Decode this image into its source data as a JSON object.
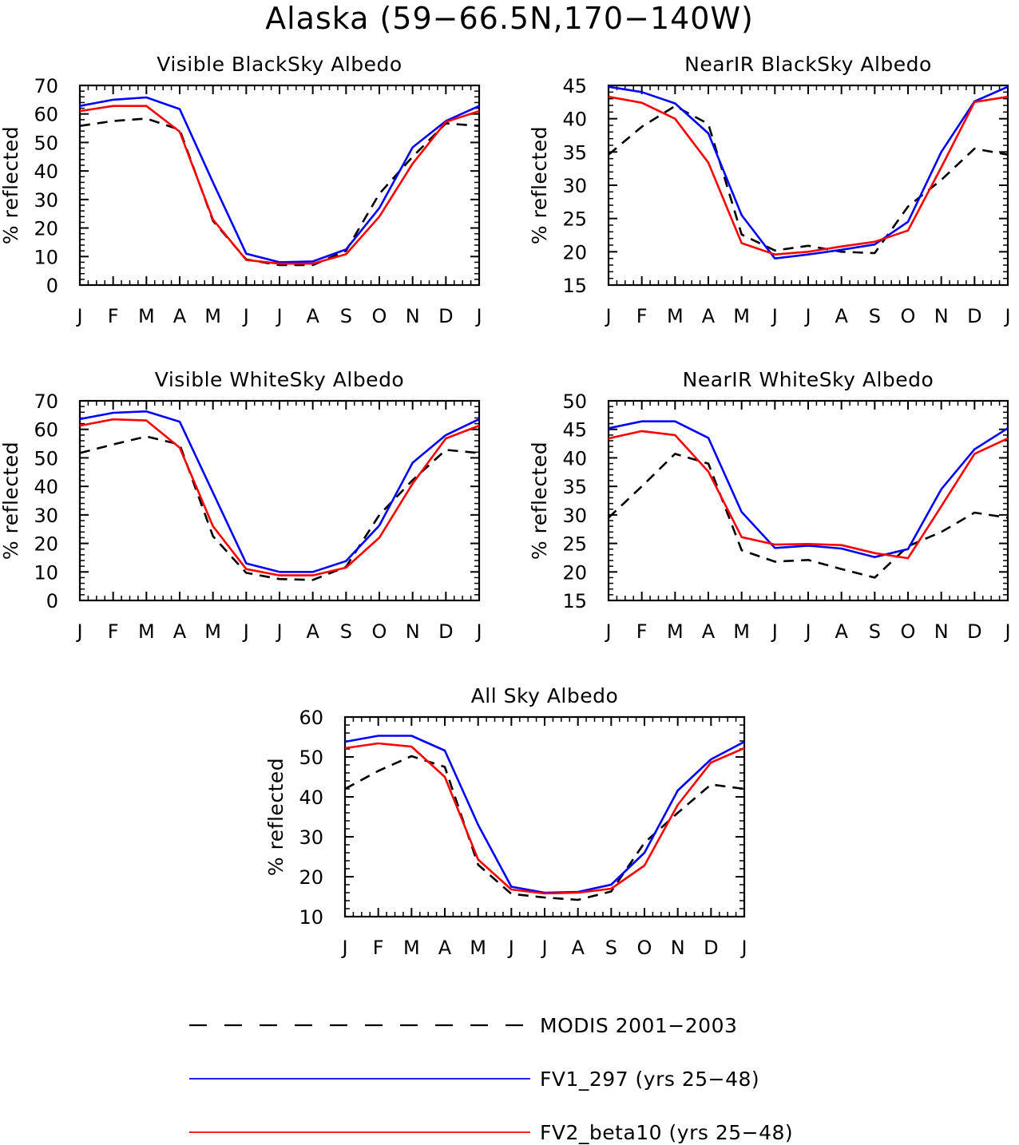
{
  "title": "Alaska (59−66.5N,170−140W)",
  "months": [
    "J",
    "F",
    "M",
    "A",
    "M",
    "J",
    "J",
    "A",
    "S",
    "O",
    "N",
    "D",
    "J"
  ],
  "legend": [
    {
      "label": "MODIS 2001−2003",
      "color": "#000000",
      "dash": true
    },
    {
      "label": "FV1_297 (yrs 25−48)",
      "color": "#0000ff",
      "dash": false
    },
    {
      "label": "FV2_beta10 (yrs 25−48)",
      "color": "#ff0000",
      "dash": false
    }
  ],
  "chart_data": [
    {
      "type": "line",
      "title": "Visible BlackSky Albedo",
      "ylabel": "% reflected",
      "ylim": [
        0,
        70
      ],
      "yticks": [
        0,
        10,
        20,
        30,
        40,
        50,
        60,
        70
      ],
      "x": [
        "J",
        "F",
        "M",
        "A",
        "M",
        "J",
        "J",
        "A",
        "S",
        "O",
        "N",
        "D",
        "J"
      ],
      "series": [
        {
          "name": "MODIS 2001−2003",
          "color": "#000000",
          "dash": true,
          "values": [
            55.8,
            57.5,
            58.4,
            54.5,
            22.5,
            9.0,
            7.0,
            7.0,
            12.0,
            32.0,
            45.0,
            56.7,
            55.8
          ]
        },
        {
          "name": "FV1_297 (yrs 25−48)",
          "color": "#0000ff",
          "dash": false,
          "values": [
            62.8,
            65.0,
            65.8,
            61.7,
            36.0,
            11.0,
            8.0,
            8.3,
            12.5,
            27.0,
            48.3,
            57.5,
            62.8
          ]
        },
        {
          "name": "FV2_beta10 (yrs 25−48)",
          "color": "#ff0000",
          "dash": false,
          "values": [
            61.0,
            62.8,
            62.8,
            53.8,
            23.0,
            8.8,
            7.5,
            7.5,
            10.8,
            24.0,
            42.6,
            57.2,
            61.0
          ]
        }
      ]
    },
    {
      "type": "line",
      "title": "NearIR BlackSky Albedo",
      "ylabel": "% reflected",
      "ylim": [
        15,
        45
      ],
      "yticks": [
        15,
        20,
        25,
        30,
        35,
        40,
        45
      ],
      "x": [
        "J",
        "F",
        "M",
        "A",
        "M",
        "J",
        "J",
        "A",
        "S",
        "O",
        "N",
        "D",
        "J"
      ],
      "series": [
        {
          "name": "MODIS 2001−2003",
          "color": "#000000",
          "dash": true,
          "values": [
            34.6,
            38.8,
            41.9,
            39.2,
            22.6,
            20.2,
            20.9,
            20.0,
            19.8,
            26.8,
            30.8,
            35.5,
            34.6
          ]
        },
        {
          "name": "FV1_297 (yrs 25−48)",
          "color": "#0000ff",
          "dash": false,
          "values": [
            44.8,
            44.0,
            42.3,
            37.8,
            25.5,
            19.0,
            19.6,
            20.3,
            21.1,
            24.5,
            35.0,
            42.6,
            44.8
          ]
        },
        {
          "name": "FV2_beta10 (yrs 25−48)",
          "color": "#ff0000",
          "dash": false,
          "values": [
            43.3,
            42.4,
            40.0,
            33.4,
            21.3,
            19.6,
            20.0,
            20.8,
            21.5,
            23.2,
            32.7,
            42.5,
            43.3
          ]
        }
      ]
    },
    {
      "type": "line",
      "title": "Visible WhiteSky Albedo",
      "ylabel": "% reflected",
      "ylim": [
        0,
        70
      ],
      "yticks": [
        0,
        10,
        20,
        30,
        40,
        50,
        60,
        70
      ],
      "x": [
        "J",
        "F",
        "M",
        "A",
        "M",
        "J",
        "J",
        "A",
        "S",
        "O",
        "N",
        "D",
        "J"
      ],
      "series": [
        {
          "name": "MODIS 2001−2003",
          "color": "#000000",
          "dash": true,
          "values": [
            51.7,
            54.7,
            57.5,
            54.7,
            22.5,
            9.7,
            7.5,
            7.2,
            11.8,
            30.0,
            42.2,
            52.8,
            51.7
          ]
        },
        {
          "name": "FV1_297 (yrs 25−48)",
          "color": "#0000ff",
          "dash": false,
          "values": [
            63.6,
            65.8,
            66.3,
            62.7,
            37.8,
            13.0,
            10.0,
            10.0,
            13.8,
            26.3,
            48.3,
            58.0,
            63.6
          ]
        },
        {
          "name": "FV2_beta10 (yrs 25−48)",
          "color": "#ff0000",
          "dash": false,
          "values": [
            61.3,
            63.5,
            63.1,
            53.6,
            26.0,
            11.0,
            8.8,
            8.8,
            11.5,
            22.0,
            41.0,
            56.8,
            61.3
          ]
        }
      ]
    },
    {
      "type": "line",
      "title": "NearIR WhiteSky Albedo",
      "ylabel": "% reflected",
      "ylim": [
        15,
        50
      ],
      "yticks": [
        15,
        20,
        25,
        30,
        35,
        40,
        45,
        50
      ],
      "x": [
        "J",
        "F",
        "M",
        "A",
        "M",
        "J",
        "J",
        "A",
        "S",
        "O",
        "N",
        "D",
        "J"
      ],
      "series": [
        {
          "name": "MODIS 2001−2003",
          "color": "#000000",
          "dash": true,
          "values": [
            29.5,
            35.0,
            40.7,
            39.0,
            23.8,
            21.8,
            22.1,
            20.5,
            19.0,
            24.5,
            27.0,
            30.4,
            29.5
          ]
        },
        {
          "name": "FV1_297 (yrs 25−48)",
          "color": "#0000ff",
          "dash": false,
          "values": [
            45.2,
            46.4,
            46.4,
            43.5,
            30.5,
            24.2,
            24.6,
            24.1,
            22.6,
            24.0,
            34.5,
            41.5,
            45.2
          ]
        },
        {
          "name": "FV2_beta10 (yrs 25−48)",
          "color": "#ff0000",
          "dash": false,
          "values": [
            43.4,
            44.7,
            44.0,
            37.6,
            26.1,
            24.8,
            24.9,
            24.7,
            23.3,
            22.4,
            31.5,
            40.7,
            43.4
          ]
        }
      ]
    },
    {
      "type": "line",
      "title": "All Sky Albedo",
      "ylabel": "% reflected",
      "ylim": [
        10,
        60
      ],
      "yticks": [
        10,
        20,
        30,
        40,
        50,
        60
      ],
      "x": [
        "J",
        "F",
        "M",
        "A",
        "M",
        "J",
        "J",
        "A",
        "S",
        "O",
        "N",
        "D",
        "J"
      ],
      "series": [
        {
          "name": "MODIS 2001−2003",
          "color": "#000000",
          "dash": true,
          "values": [
            42.0,
            46.5,
            50.2,
            47.5,
            23.0,
            15.7,
            14.8,
            14.2,
            16.3,
            28.5,
            36.0,
            43.1,
            42.0
          ]
        },
        {
          "name": "FV1_297 (yrs 25−48)",
          "color": "#0000ff",
          "dash": false,
          "values": [
            53.8,
            55.3,
            55.3,
            51.6,
            33.0,
            17.5,
            16.0,
            16.2,
            18.0,
            26.0,
            41.6,
            49.4,
            53.8
          ]
        },
        {
          "name": "FV2_beta10 (yrs 25−48)",
          "color": "#ff0000",
          "dash": false,
          "values": [
            52.2,
            53.4,
            52.6,
            45.0,
            24.3,
            16.8,
            15.8,
            16.0,
            17.0,
            22.8,
            38.0,
            48.6,
            52.2
          ]
        }
      ]
    }
  ]
}
